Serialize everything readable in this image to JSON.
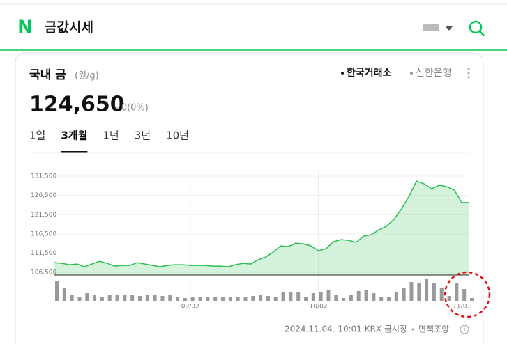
{
  "header": {
    "logo": "N",
    "title": "금값시세"
  },
  "card": {
    "title": "국내 금",
    "unit": "(원/g)",
    "sources": [
      "한국거래소",
      "신한은행"
    ],
    "price": "124,650",
    "change": "- 0(0%)",
    "tabs": [
      "1일",
      "3개월",
      "1년",
      "3년",
      "10년"
    ],
    "selected_tab": 1,
    "footer": {
      "timestamp": "2024.11.04. 10:01 KRX 금시장",
      "disclaimer": "면책조항"
    }
  },
  "chart_data": {
    "type": "line",
    "categories": [
      null,
      null,
      null,
      null,
      null,
      null,
      null,
      null,
      null,
      null,
      null,
      null,
      null,
      null,
      null,
      null,
      null,
      null,
      "09/02",
      null,
      null,
      null,
      null,
      null,
      null,
      null,
      null,
      null,
      null,
      null,
      null,
      null,
      null,
      null,
      null,
      "10/02",
      null,
      null,
      null,
      null,
      null,
      null,
      null,
      null,
      null,
      null,
      null,
      null,
      null,
      null,
      null,
      null,
      null,
      null,
      "11/01",
      null
    ],
    "values": [
      109040,
      108860,
      108490,
      108670,
      107950,
      108700,
      109400,
      108860,
      108130,
      108310,
      108310,
      109040,
      108670,
      108310,
      107950,
      108310,
      108490,
      108490,
      108310,
      108310,
      108310,
      108130,
      108130,
      107950,
      108490,
      108860,
      108670,
      109760,
      110490,
      111750,
      113380,
      113200,
      114110,
      113930,
      113380,
      112120,
      112660,
      114470,
      115010,
      114830,
      114290,
      115920,
      116280,
      117550,
      118460,
      120270,
      122990,
      126250,
      130230,
      129510,
      128240,
      129150,
      128780,
      127880,
      124650,
      124650
    ],
    "color": "#2dbd4e",
    "ylim": [
      105800,
      133500
    ],
    "yticks": [
      {
        "value": 106500,
        "label": "106,500"
      },
      {
        "value": 111500,
        "label": "111,500"
      },
      {
        "value": 116500,
        "label": "116,500"
      },
      {
        "value": 121500,
        "label": "121,500"
      },
      {
        "value": 126500,
        "label": "126,500"
      },
      {
        "value": 131500,
        "label": "131,500"
      }
    ],
    "grid": true,
    "volume": {
      "values": [
        29,
        19,
        8,
        6,
        11,
        9,
        6,
        9,
        8,
        8,
        9,
        7,
        8,
        8,
        7,
        9,
        6,
        4,
        6,
        6,
        5,
        6,
        6,
        6,
        5,
        5,
        7,
        9,
        7,
        5,
        13,
        13,
        13,
        6,
        11,
        12,
        16,
        9,
        4,
        8,
        14,
        15,
        11,
        5,
        6,
        13,
        18,
        27,
        26,
        31,
        26,
        19,
        7,
        26,
        17,
        4
      ],
      "color": "#9a9a9a",
      "ylim": [
        0,
        32
      ]
    }
  }
}
